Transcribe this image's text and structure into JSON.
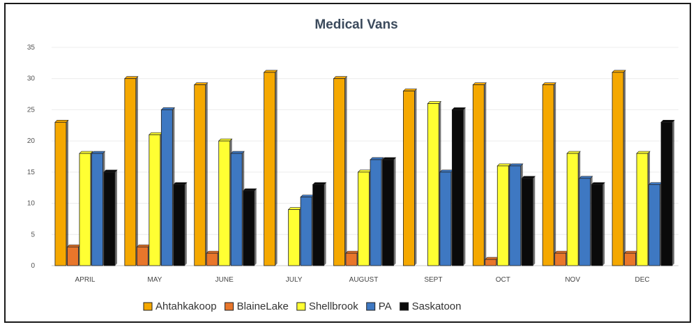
{
  "chart_data": {
    "type": "bar",
    "title": "Medical Vans",
    "xlabel": "",
    "ylabel": "",
    "ylim": [
      0,
      35
    ],
    "yticks": [
      0,
      5,
      10,
      15,
      20,
      25,
      30,
      35
    ],
    "grid": true,
    "legend_position": "bottom",
    "categories": [
      "APRIL",
      "MAY",
      "JUNE",
      "JULY",
      "AUGUST",
      "SEPT",
      "OCT",
      "NOV",
      "DEC"
    ],
    "series": [
      {
        "name": "Ahtahkakoop",
        "color": "#f5a800",
        "values": [
          23,
          30,
          29,
          31,
          30,
          28,
          29,
          29,
          31
        ]
      },
      {
        "name": "BlaineLake",
        "color": "#e8762b",
        "values": [
          3,
          3,
          2,
          0,
          2,
          0,
          1,
          2,
          2
        ]
      },
      {
        "name": "Shellbrook",
        "color": "#ffff33",
        "values": [
          18,
          21,
          20,
          9,
          15,
          26,
          16,
          18,
          18
        ]
      },
      {
        "name": "PA",
        "color": "#3e78c2",
        "values": [
          18,
          25,
          18,
          11,
          17,
          15,
          16,
          14,
          13
        ]
      },
      {
        "name": "Saskatoon",
        "color": "#0a0a0a",
        "values": [
          15,
          13,
          12,
          13,
          17,
          25,
          14,
          13,
          23
        ]
      }
    ]
  }
}
